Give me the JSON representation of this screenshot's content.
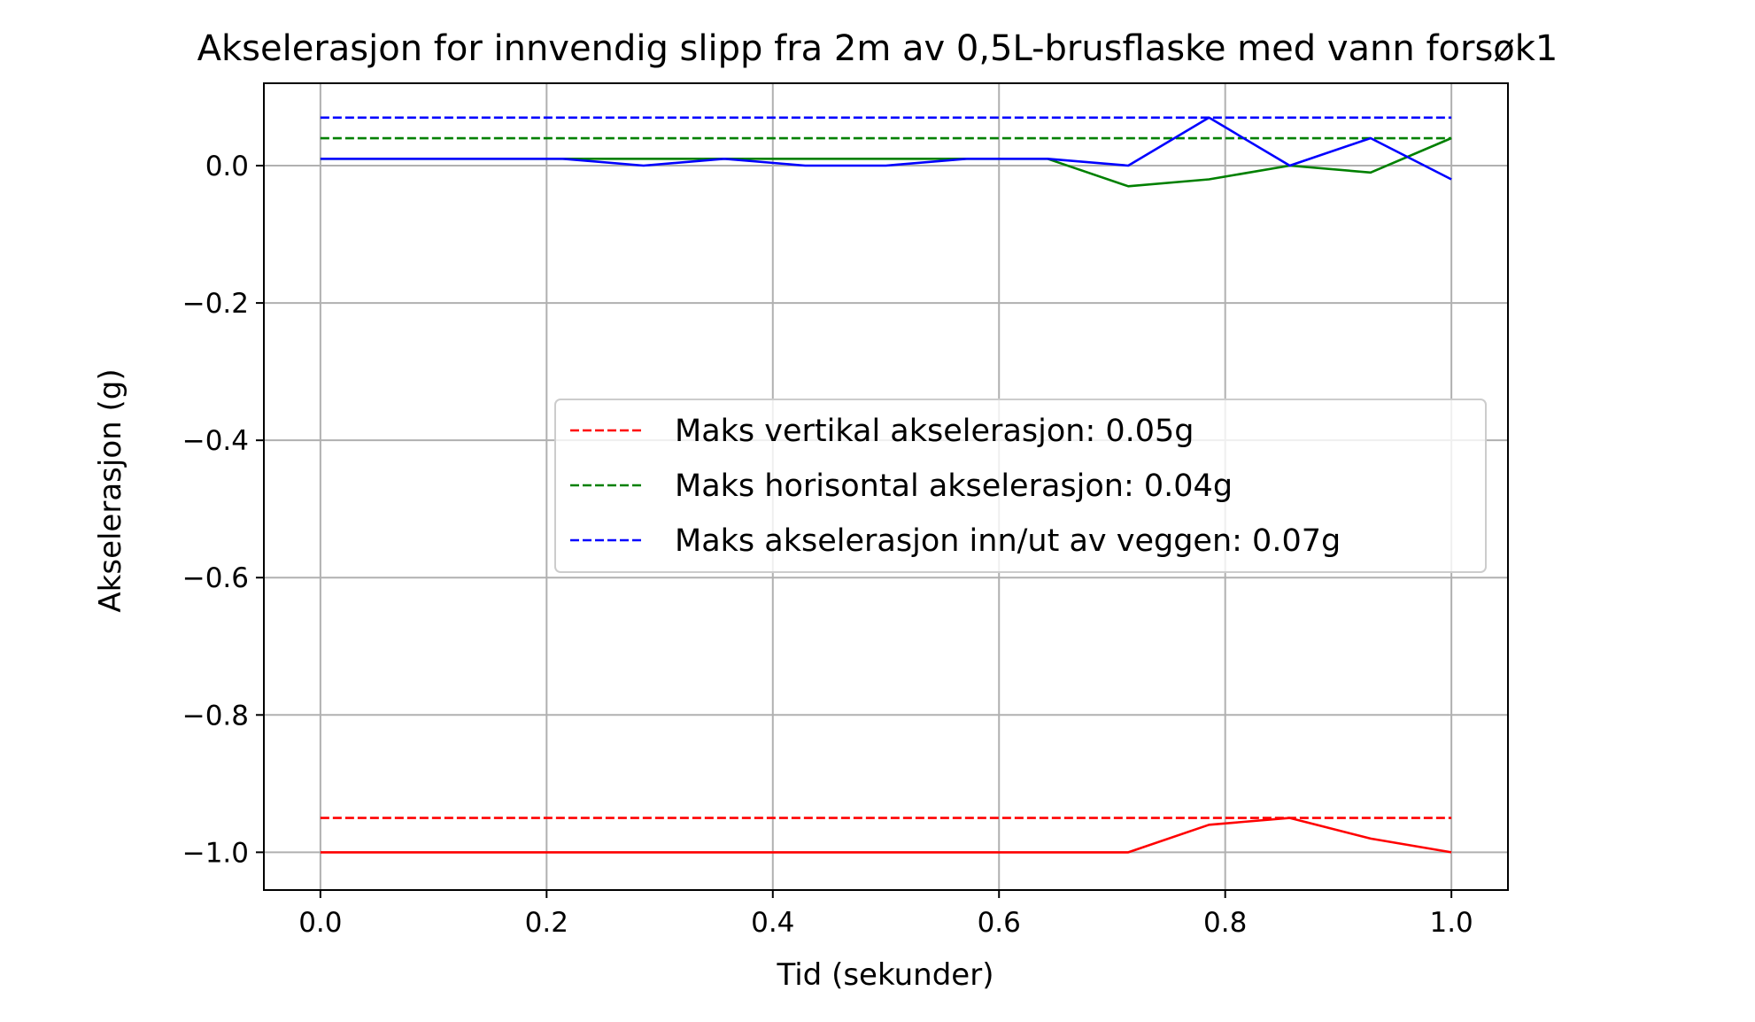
{
  "chart_data": {
    "type": "line",
    "title": "Akselerasjon for innvendig slipp fra 2m av 0,5L-brusflaske med vann forsøk1",
    "xlabel": "Tid (sekunder)",
    "ylabel": "Akselerasjon (g)",
    "xlim": [
      -0.05,
      1.05
    ],
    "ylim": [
      -1.055,
      0.12
    ],
    "x_ticks": [
      0.0,
      0.2,
      0.4,
      0.6,
      0.8,
      1.0
    ],
    "x_tick_labels": [
      "0.0",
      "0.2",
      "0.4",
      "0.6",
      "0.8",
      "1.0"
    ],
    "y_ticks": [
      0.0,
      -0.2,
      -0.4,
      -0.6,
      -0.8,
      -1.0
    ],
    "y_tick_labels": [
      "0.0",
      "−0.2",
      "−0.4",
      "−0.6",
      "−0.8",
      "−1.0"
    ],
    "grid": true,
    "legend_position": "center-right",
    "x": [
      0.0,
      0.0714,
      0.1429,
      0.2143,
      0.2857,
      0.3571,
      0.4286,
      0.5,
      0.5714,
      0.6429,
      0.7143,
      0.7857,
      0.8571,
      0.9286,
      1.0
    ],
    "series": [
      {
        "color": "#ff0000",
        "values": [
          -1.0,
          -1.0,
          -1.0,
          -1.0,
          -1.0,
          -1.0,
          -1.0,
          -1.0,
          -1.0,
          -1.0,
          -1.0,
          -0.96,
          -0.95,
          -0.98,
          -1.0
        ]
      },
      {
        "color": "#008000",
        "values": [
          0.01,
          0.01,
          0.01,
          0.01,
          0.01,
          0.01,
          0.01,
          0.01,
          0.01,
          0.01,
          -0.03,
          -0.02,
          0.0,
          -0.01,
          0.04
        ]
      },
      {
        "color": "#0000ff",
        "values": [
          0.01,
          0.01,
          0.01,
          0.01,
          0.0,
          0.01,
          0.0,
          0.0,
          0.01,
          0.01,
          0.0,
          0.07,
          0.0,
          0.04,
          -0.02
        ]
      }
    ],
    "reference_lines": [
      {
        "name": "Maks vertikal akselerasjon: 0.05g",
        "value": -0.95,
        "x_range": [
          0.0,
          1.0
        ],
        "color": "#ff0000",
        "style": "dashed"
      },
      {
        "name": "Maks horisontal akselerasjon: 0.04g",
        "value": 0.04,
        "x_range": [
          0.0,
          1.0
        ],
        "color": "#008000",
        "style": "dashed"
      },
      {
        "name": "Maks akselerasjon inn/ut av veggen: 0.07g",
        "value": 0.07,
        "x_range": [
          0.0,
          1.0
        ],
        "color": "#0000ff",
        "style": "dashed"
      }
    ]
  }
}
